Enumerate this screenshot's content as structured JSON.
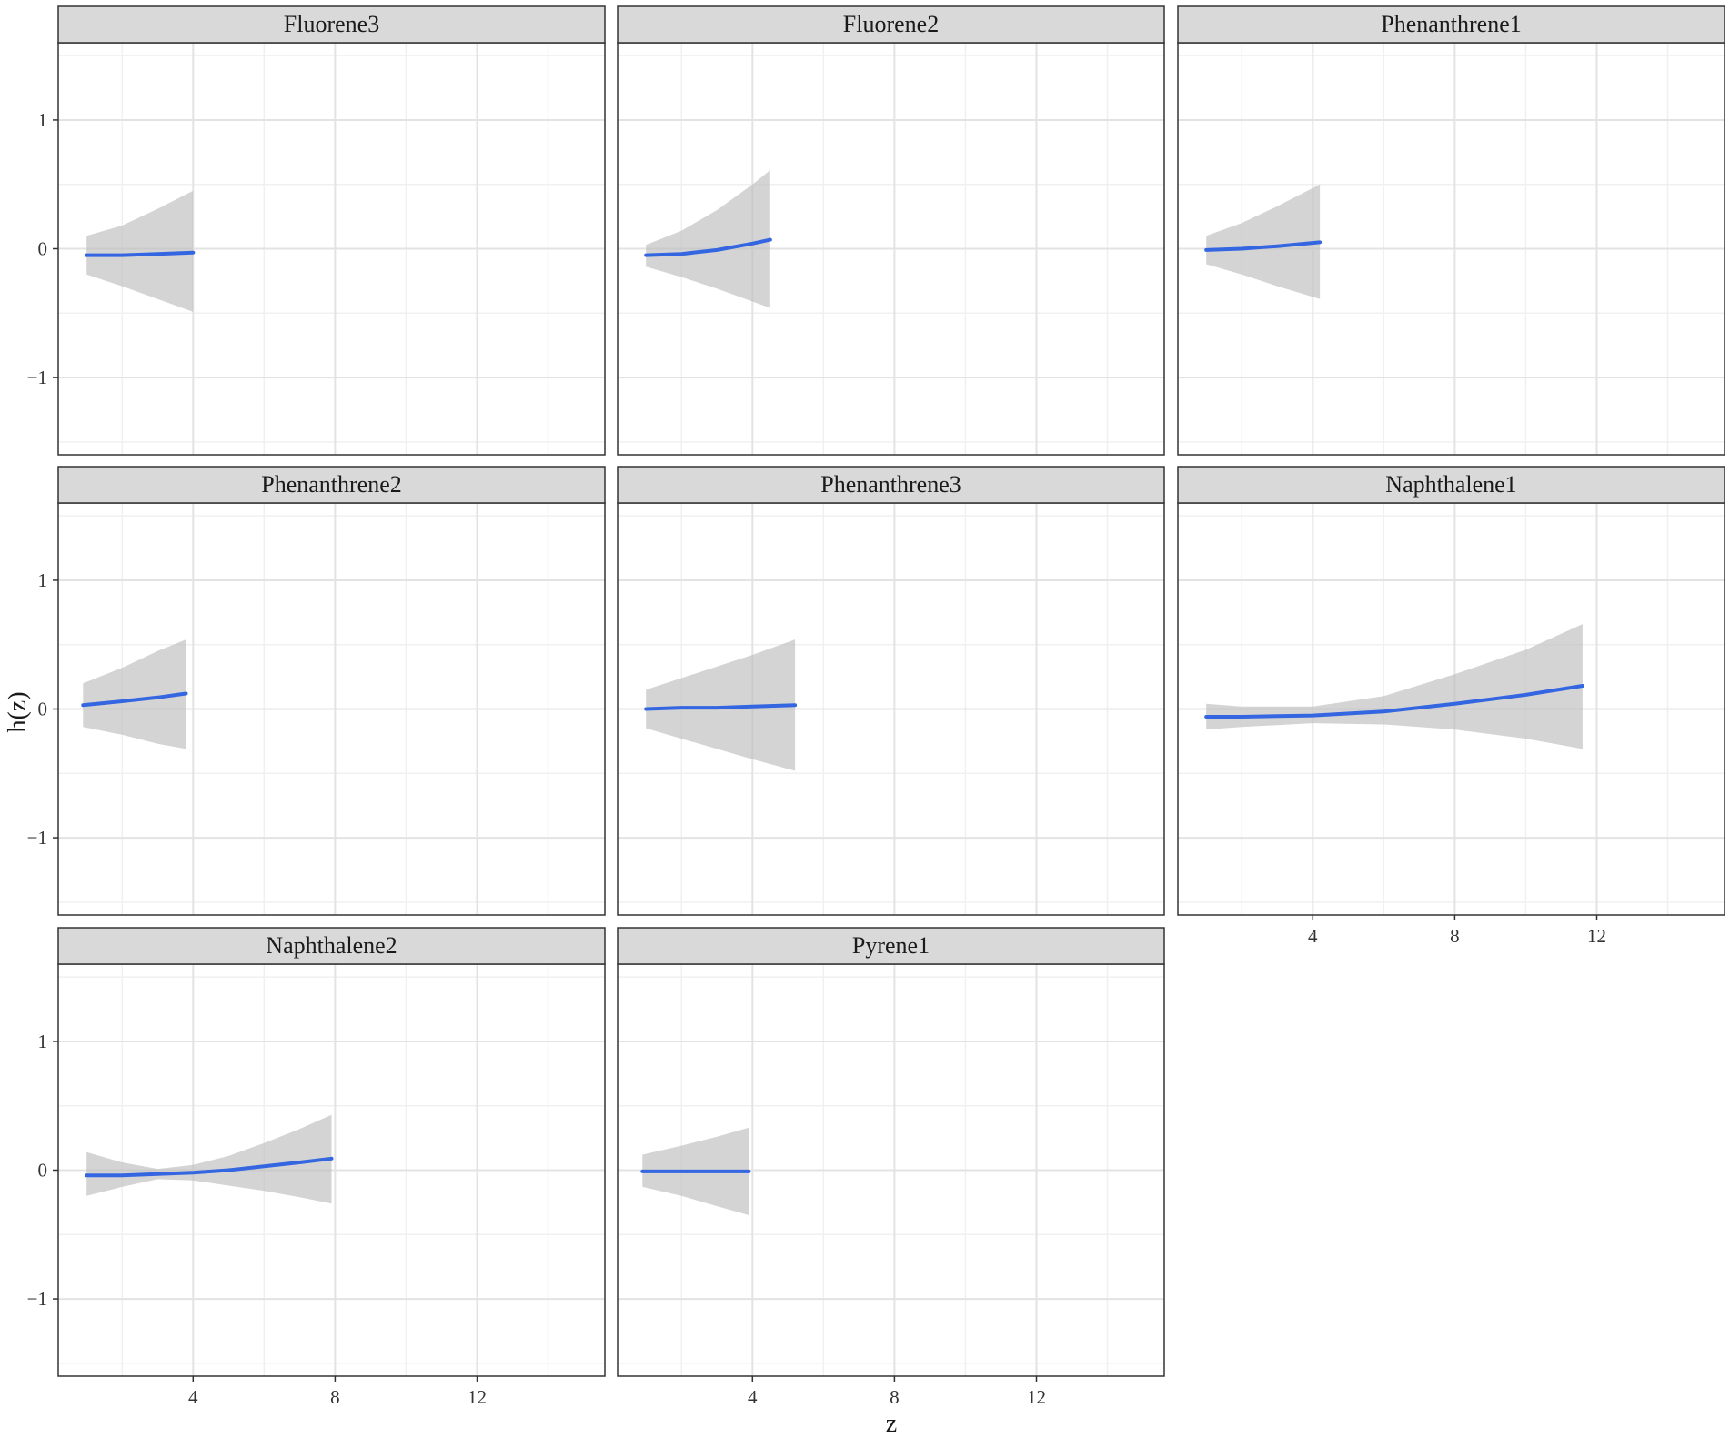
{
  "chart_data": {
    "type": "line",
    "layout": "faceted 3 columns, shared axes",
    "xlabel": "z",
    "ylabel": "h(z)",
    "xlim": [
      0.2,
      15.6
    ],
    "ylim": [
      -1.6,
      1.6
    ],
    "x_ticks": [
      4,
      8,
      12
    ],
    "x_tick_labels": [
      "4",
      "8",
      "12"
    ],
    "y_ticks": [
      -1,
      0,
      1
    ],
    "y_tick_labels": [
      "−1",
      "0",
      "1"
    ],
    "grid": true,
    "line_color": "#3366e0",
    "ribbon_color": "#bdbdbd",
    "strip_color": "#d9d9d9",
    "panels": [
      {
        "label": "Fluorene3",
        "x": [
          1.0,
          2.0,
          3.0,
          4.0
        ],
        "y": [
          -0.05,
          -0.05,
          -0.04,
          -0.03
        ],
        "lower": [
          -0.2,
          -0.29,
          -0.39,
          -0.49
        ],
        "upper": [
          0.1,
          0.18,
          0.31,
          0.45
        ]
      },
      {
        "label": "Fluorene2",
        "x": [
          1.0,
          2.0,
          3.0,
          4.0,
          4.5
        ],
        "y": [
          -0.05,
          -0.04,
          -0.01,
          0.04,
          0.07
        ],
        "lower": [
          -0.14,
          -0.22,
          -0.31,
          -0.41,
          -0.46
        ],
        "upper": [
          0.03,
          0.14,
          0.3,
          0.5,
          0.61
        ]
      },
      {
        "label": "Phenanthrene1",
        "x": [
          1.0,
          2.0,
          3.0,
          4.2
        ],
        "y": [
          -0.01,
          0.0,
          0.02,
          0.05
        ],
        "lower": [
          -0.12,
          -0.2,
          -0.29,
          -0.39
        ],
        "upper": [
          0.1,
          0.2,
          0.33,
          0.5
        ]
      },
      {
        "label": "Phenanthrene2",
        "x": [
          0.9,
          2.0,
          3.0,
          3.8
        ],
        "y": [
          0.03,
          0.06,
          0.09,
          0.12
        ],
        "lower": [
          -0.14,
          -0.2,
          -0.27,
          -0.31
        ],
        "upper": [
          0.2,
          0.32,
          0.45,
          0.54
        ]
      },
      {
        "label": "Phenanthrene3",
        "x": [
          1.0,
          2.0,
          3.0,
          4.0,
          5.2
        ],
        "y": [
          0.0,
          0.01,
          0.01,
          0.02,
          0.03
        ],
        "lower": [
          -0.15,
          -0.23,
          -0.31,
          -0.39,
          -0.48
        ],
        "upper": [
          0.15,
          0.24,
          0.33,
          0.42,
          0.54
        ]
      },
      {
        "label": "Naphthalene1",
        "x": [
          1.0,
          2.0,
          4.0,
          6.0,
          8.0,
          10.0,
          11.6
        ],
        "y": [
          -0.06,
          -0.06,
          -0.05,
          -0.02,
          0.04,
          0.11,
          0.18
        ],
        "lower": [
          -0.16,
          -0.14,
          -0.11,
          -0.12,
          -0.16,
          -0.23,
          -0.31
        ],
        "upper": [
          0.04,
          0.02,
          0.02,
          0.1,
          0.27,
          0.46,
          0.66
        ]
      },
      {
        "label": "Naphthalene2",
        "x": [
          1.0,
          2.0,
          3.0,
          4.0,
          5.0,
          6.0,
          7.0,
          7.9
        ],
        "y": [
          -0.04,
          -0.04,
          -0.03,
          -0.02,
          0.0,
          0.03,
          0.06,
          0.09
        ],
        "lower": [
          -0.2,
          -0.13,
          -0.07,
          -0.08,
          -0.12,
          -0.16,
          -0.21,
          -0.26
        ],
        "upper": [
          0.14,
          0.06,
          0.01,
          0.04,
          0.11,
          0.21,
          0.32,
          0.43
        ]
      },
      {
        "label": "Pyrene1",
        "x": [
          0.9,
          2.0,
          3.0,
          3.9
        ],
        "y": [
          -0.01,
          -0.01,
          -0.01,
          -0.01
        ],
        "lower": [
          -0.13,
          -0.2,
          -0.28,
          -0.35
        ],
        "upper": [
          0.12,
          0.19,
          0.26,
          0.33
        ]
      }
    ]
  }
}
